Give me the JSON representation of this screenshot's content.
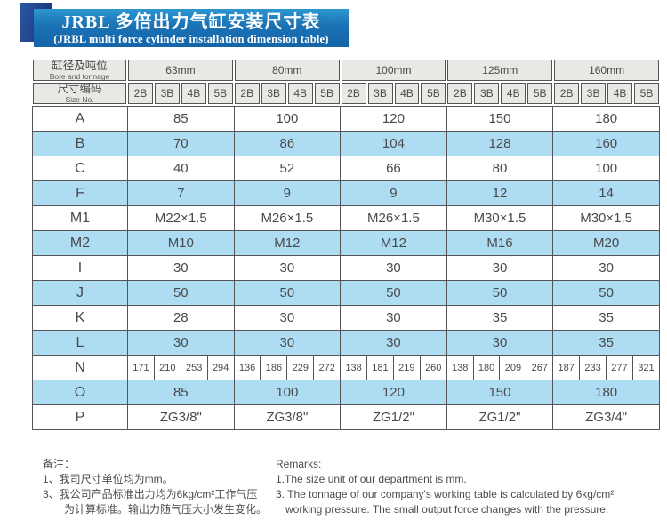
{
  "title": {
    "line1": "JRBL 多倍出力气缸安装尺寸表",
    "line2": "(JRBL multi force cylinder installation dimension table)"
  },
  "table": {
    "corner": {
      "row1_cn": "缸径及吨位",
      "row1_en": "Bore and tonnage",
      "row2_cn": "尺寸编码",
      "row2_en": "Size No."
    },
    "bore_sizes": [
      "63mm",
      "80mm",
      "100mm",
      "125mm",
      "160mm"
    ],
    "size_codes": [
      "2B",
      "3B",
      "4B",
      "5B"
    ],
    "rows": [
      {
        "label": "A",
        "shaded": false,
        "values": [
          "85",
          "100",
          "120",
          "150",
          "180"
        ]
      },
      {
        "label": "B",
        "shaded": true,
        "values": [
          "70",
          "86",
          "104",
          "128",
          "160"
        ]
      },
      {
        "label": "C",
        "shaded": false,
        "values": [
          "40",
          "52",
          "66",
          "80",
          "100"
        ]
      },
      {
        "label": "F",
        "shaded": true,
        "values": [
          "7",
          "9",
          "9",
          "12",
          "14"
        ]
      },
      {
        "label": "M1",
        "shaded": false,
        "values": [
          "M22×1.5",
          "M26×1.5",
          "M26×1.5",
          "M30×1.5",
          "M30×1.5"
        ]
      },
      {
        "label": "M2",
        "shaded": true,
        "values": [
          "M10",
          "M12",
          "M12",
          "M16",
          "M20"
        ]
      },
      {
        "label": "I",
        "shaded": false,
        "values": [
          "30",
          "30",
          "30",
          "30",
          "30"
        ]
      },
      {
        "label": "J",
        "shaded": true,
        "values": [
          "50",
          "50",
          "50",
          "50",
          "50"
        ]
      },
      {
        "label": "K",
        "shaded": false,
        "values": [
          "28",
          "30",
          "30",
          "35",
          "35"
        ]
      },
      {
        "label": "L",
        "shaded": true,
        "values": [
          "30",
          "30",
          "30",
          "30",
          "35"
        ]
      },
      {
        "label": "N",
        "shaded": false,
        "values": [
          [
            "171",
            "210",
            "253",
            "294"
          ],
          [
            "136",
            "186",
            "229",
            "272"
          ],
          [
            "138",
            "181",
            "219",
            "260"
          ],
          [
            "138",
            "180",
            "209",
            "267"
          ],
          [
            "187",
            "233",
            "277",
            "321"
          ]
        ]
      },
      {
        "label": "O",
        "shaded": true,
        "values": [
          "85",
          "100",
          "120",
          "150",
          "180"
        ]
      },
      {
        "label": "P",
        "shaded": false,
        "values": [
          "ZG3/8\"",
          "ZG3/8\"",
          "ZG1/2\"",
          "ZG1/2\"",
          "ZG3/4\""
        ]
      }
    ]
  },
  "notes_cn": {
    "title": "备注：",
    "line1": "1、我司尺寸单位均为mm。",
    "line2": "3、我公司产品标准出力均为6kg/cm²工作气压",
    "line3": "为计算标准。输出力随气压大小发生变化。"
  },
  "notes_en": {
    "title": "Remarks:",
    "line1": "1.The size unit of our department is mm.",
    "line2": "3. The tonnage of our company's working table is calculated by 6kg/cm²",
    "line3": "working pressure. The small output force changes with the pressure."
  },
  "colors": {
    "banner_blue": "#1a72b4",
    "navy_square": "#1d3a7d",
    "header_gray": "#e8e8e4",
    "shaded_row_blue": "#aedcf3",
    "border": "#555555",
    "text": "#4a4a4a"
  }
}
